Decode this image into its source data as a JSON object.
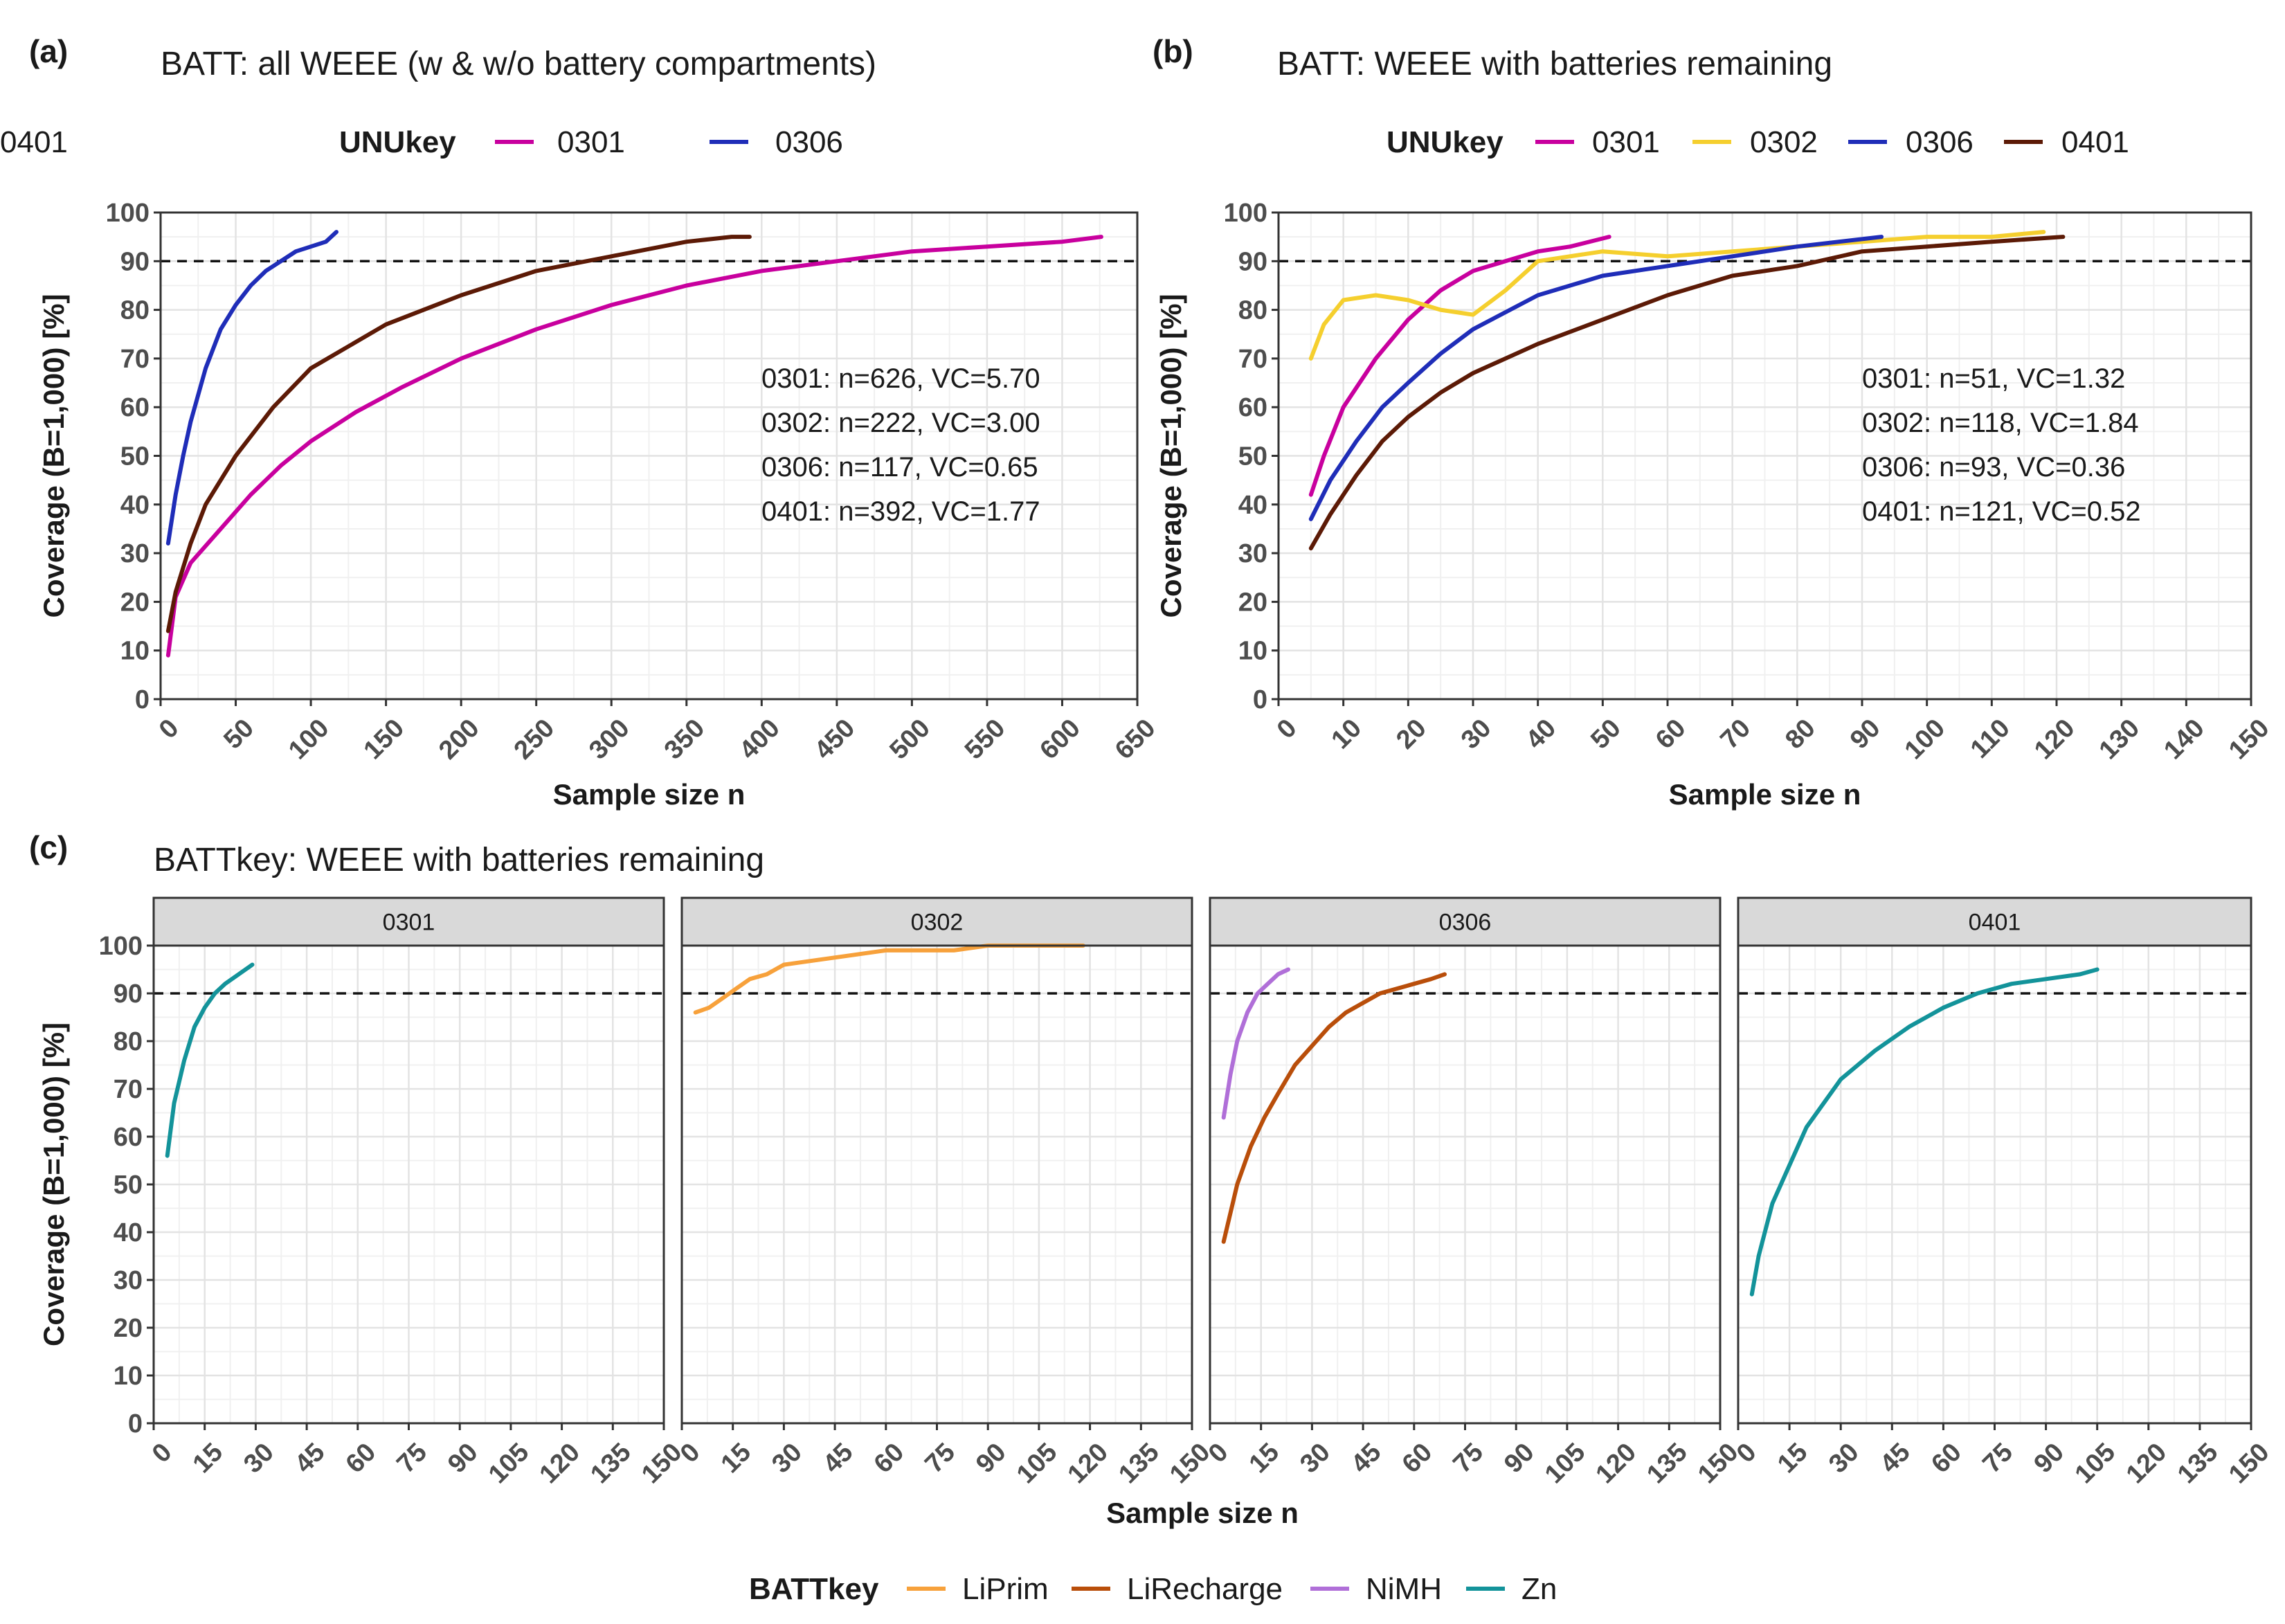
{
  "chart_data": [
    {
      "id": "a",
      "tag": "(a)",
      "type": "line",
      "title": "BATT: all WEEE (w & w/o battery compartments)",
      "xlabel": "Sample size n",
      "ylabel": "Coverage (B=1,000) [%]",
      "xlim": [
        0,
        650
      ],
      "ylim": [
        0,
        100
      ],
      "xticks": [
        0,
        50,
        100,
        150,
        200,
        250,
        300,
        350,
        400,
        450,
        500,
        550,
        600,
        650
      ],
      "yticks": [
        0,
        10,
        20,
        30,
        40,
        50,
        60,
        70,
        80,
        90,
        100
      ],
      "threshold": 90,
      "legend_title": "UNUkey",
      "legend": [
        "0301",
        "0306",
        "0401"
      ],
      "series": [
        {
          "name": "0301",
          "color": "#c8009e",
          "x": [
            5,
            10,
            20,
            40,
            60,
            80,
            100,
            130,
            160,
            200,
            250,
            300,
            350,
            400,
            450,
            500,
            550,
            600,
            626
          ],
          "y": [
            9,
            21,
            28,
            35,
            42,
            48,
            53,
            59,
            64,
            70,
            76,
            81,
            85,
            88,
            90,
            92,
            93,
            94,
            95
          ]
        },
        {
          "name": "0306",
          "color": "#1f2db8",
          "x": [
            5,
            10,
            15,
            20,
            30,
            40,
            50,
            60,
            70,
            80,
            90,
            100,
            110,
            117
          ],
          "y": [
            32,
            42,
            50,
            57,
            68,
            76,
            81,
            85,
            88,
            90,
            92,
            93,
            94,
            96
          ]
        },
        {
          "name": "0401",
          "color": "#5c1a06",
          "x": [
            5,
            10,
            20,
            30,
            50,
            75,
            100,
            150,
            200,
            250,
            300,
            350,
            380,
            392
          ],
          "y": [
            14,
            22,
            32,
            40,
            50,
            60,
            68,
            77,
            83,
            88,
            91,
            94,
            95,
            95
          ]
        }
      ],
      "annotations": [
        "0301: n=626, VC=5.70",
        "0302: n=222, VC=3.00",
        "0306: n=117, VC=0.65",
        "0401: n=392, VC=1.77"
      ]
    },
    {
      "id": "b",
      "tag": "(b)",
      "type": "line",
      "title": "BATT: WEEE with batteries remaining",
      "xlabel": "Sample size n",
      "ylabel": "Coverage (B=1,000) [%]",
      "xlim": [
        0,
        150
      ],
      "ylim": [
        0,
        100
      ],
      "xticks": [
        0,
        10,
        20,
        30,
        40,
        50,
        60,
        70,
        80,
        90,
        100,
        110,
        120,
        130,
        140,
        150
      ],
      "yticks": [
        0,
        10,
        20,
        30,
        40,
        50,
        60,
        70,
        80,
        90,
        100
      ],
      "threshold": 90,
      "legend_title": "UNUkey",
      "legend": [
        "0301",
        "0302",
        "0306",
        "0401"
      ],
      "series": [
        {
          "name": "0301",
          "color": "#c8009e",
          "x": [
            5,
            7,
            10,
            15,
            20,
            25,
            30,
            35,
            40,
            45,
            51
          ],
          "y": [
            42,
            50,
            60,
            70,
            78,
            84,
            88,
            90,
            92,
            93,
            95
          ]
        },
        {
          "name": "0302",
          "color": "#f5cf2e",
          "x": [
            5,
            7,
            10,
            15,
            20,
            25,
            30,
            35,
            40,
            50,
            60,
            70,
            80,
            90,
            100,
            110,
            118
          ],
          "y": [
            70,
            77,
            82,
            83,
            82,
            80,
            79,
            84,
            90,
            92,
            91,
            92,
            93,
            94,
            95,
            95,
            96
          ]
        },
        {
          "name": "0306",
          "color": "#1f2db8",
          "x": [
            5,
            8,
            12,
            16,
            20,
            25,
            30,
            40,
            50,
            60,
            70,
            80,
            93
          ],
          "y": [
            37,
            45,
            53,
            60,
            65,
            71,
            76,
            83,
            87,
            89,
            91,
            93,
            95
          ]
        },
        {
          "name": "0401",
          "color": "#5c1a06",
          "x": [
            5,
            8,
            12,
            16,
            20,
            25,
            30,
            40,
            50,
            60,
            70,
            80,
            90,
            100,
            110,
            121
          ],
          "y": [
            31,
            38,
            46,
            53,
            58,
            63,
            67,
            73,
            78,
            83,
            87,
            89,
            92,
            93,
            94,
            95
          ]
        }
      ],
      "annotations": [
        "0301: n=51, VC=1.32",
        "0302: n=118, VC=1.84",
        "0306: n=93, VC=0.36",
        "0401: n=121, VC=0.52"
      ]
    },
    {
      "id": "c",
      "tag": "(c)",
      "type": "line",
      "title": "BATTkey: WEEE with batteries remaining",
      "xlabel": "Sample size n",
      "ylabel": "Coverage (B=1,000) [%]",
      "xlim": [
        0,
        150
      ],
      "ylim": [
        0,
        100
      ],
      "xticks": [
        0,
        15,
        30,
        45,
        60,
        75,
        90,
        105,
        120,
        135,
        150
      ],
      "yticks": [
        0,
        10,
        20,
        30,
        40,
        50,
        60,
        70,
        80,
        90,
        100
      ],
      "threshold": 90,
      "legend_title": "BATTkey",
      "legend": [
        {
          "name": "LiPrim",
          "color": "#f7a13b"
        },
        {
          "name": "LiRecharge",
          "color": "#b94e0a"
        },
        {
          "name": "NiMH",
          "color": "#b06fd8"
        },
        {
          "name": "Zn",
          "color": "#13939a"
        }
      ],
      "facets": [
        {
          "label": "0301",
          "series": [
            {
              "name": "Zn",
              "color": "#13939a",
              "x": [
                4,
                6,
                9,
                12,
                15,
                18,
                21,
                25,
                29
              ],
              "y": [
                56,
                67,
                76,
                83,
                87,
                90,
                92,
                94,
                96
              ]
            }
          ]
        },
        {
          "label": "0302",
          "series": [
            {
              "name": "LiPrim",
              "color": "#f7a13b",
              "x": [
                4,
                8,
                12,
                16,
                20,
                25,
                30,
                40,
                50,
                60,
                70,
                80,
                90,
                100,
                110,
                118
              ],
              "y": [
                86,
                87,
                89,
                91,
                93,
                94,
                96,
                97,
                98,
                99,
                99,
                99,
                100,
                100,
                100,
                100
              ]
            }
          ]
        },
        {
          "label": "0306",
          "series": [
            {
              "name": "NiMH",
              "color": "#b06fd8",
              "x": [
                4,
                6,
                8,
                11,
                14,
                17,
                20,
                23
              ],
              "y": [
                64,
                73,
                80,
                86,
                90,
                92,
                94,
                95
              ]
            },
            {
              "name": "LiRecharge",
              "color": "#b94e0a",
              "x": [
                4,
                6,
                8,
                12,
                16,
                20,
                25,
                30,
                35,
                40,
                45,
                50,
                55,
                60,
                65,
                69
              ],
              "y": [
                38,
                44,
                50,
                58,
                64,
                69,
                75,
                79,
                83,
                86,
                88,
                90,
                91,
                92,
                93,
                94
              ]
            }
          ]
        },
        {
          "label": "0401",
          "series": [
            {
              "name": "Zn",
              "color": "#13939a",
              "x": [
                4,
                6,
                10,
                15,
                20,
                25,
                30,
                40,
                50,
                60,
                70,
                80,
                90,
                100,
                105
              ],
              "y": [
                27,
                35,
                46,
                54,
                62,
                67,
                72,
                78,
                83,
                87,
                90,
                92,
                93,
                94,
                95
              ]
            }
          ]
        }
      ]
    }
  ]
}
